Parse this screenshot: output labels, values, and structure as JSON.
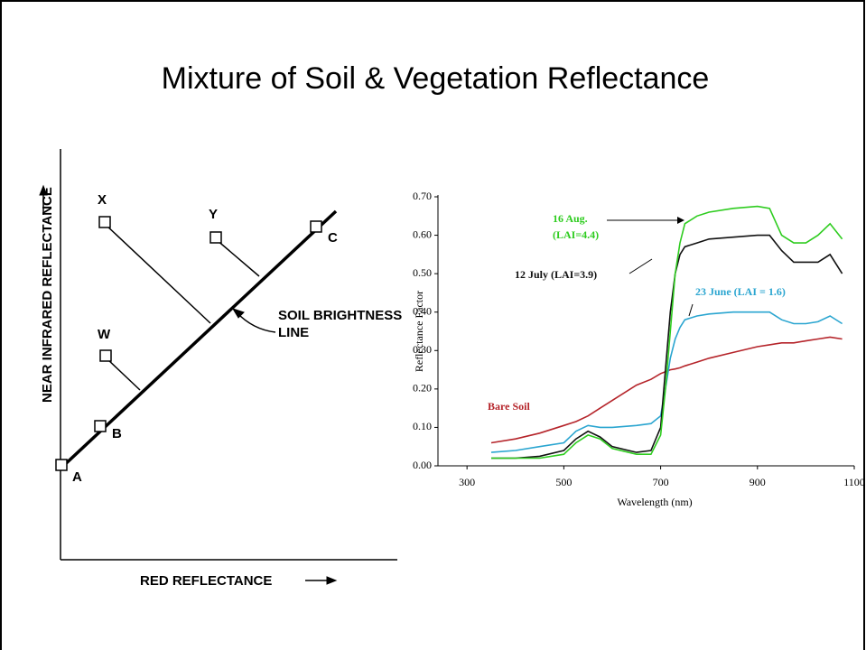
{
  "title": "Mixture of Soil & Vegetation Reflectance",
  "diagram": {
    "y_axis_label": "NEAR INFRARED REFLECTANCE",
    "x_axis_label": "RED REFLECTANCE",
    "line_label": "SOIL BRIGHTNESS LINE",
    "points": [
      "A",
      "B",
      "C",
      "X",
      "Y",
      "W"
    ]
  },
  "chart_data": {
    "type": "line",
    "x_label": "Wavelength (nm)",
    "y_label": "Reflectance Factor",
    "x": [
      350,
      400,
      450,
      500,
      525,
      550,
      575,
      600,
      650,
      680,
      700,
      710,
      720,
      730,
      740,
      750,
      775,
      800,
      850,
      900,
      925,
      950,
      975,
      1000,
      1025,
      1050,
      1075
    ],
    "series": [
      {
        "name": "Bare Soil",
        "color": "#b5242a",
        "values": [
          0.06,
          0.07,
          0.085,
          0.105,
          0.115,
          0.13,
          0.15,
          0.17,
          0.21,
          0.225,
          0.24,
          0.245,
          0.25,
          0.252,
          0.255,
          0.26,
          0.27,
          0.28,
          0.295,
          0.31,
          0.315,
          0.32,
          0.32,
          0.325,
          0.33,
          0.335,
          0.33
        ]
      },
      {
        "name": "23 June (LAI = 1.6)",
        "color": "#2aa5d0",
        "values": [
          0.035,
          0.04,
          0.05,
          0.06,
          0.09,
          0.105,
          0.1,
          0.1,
          0.105,
          0.11,
          0.13,
          0.2,
          0.28,
          0.33,
          0.36,
          0.38,
          0.39,
          0.395,
          0.4,
          0.4,
          0.4,
          0.38,
          0.37,
          0.37,
          0.375,
          0.39,
          0.37
        ]
      },
      {
        "name": "12 July (LAI=3.9)",
        "color": "#111111",
        "values": [
          0.02,
          0.02,
          0.025,
          0.04,
          0.07,
          0.09,
          0.075,
          0.05,
          0.035,
          0.04,
          0.1,
          0.25,
          0.4,
          0.5,
          0.55,
          0.57,
          0.58,
          0.59,
          0.595,
          0.6,
          0.6,
          0.56,
          0.53,
          0.53,
          0.53,
          0.55,
          0.5
        ]
      },
      {
        "name": "16 Aug. (LAI=4.4)",
        "color": "#2ecc1f",
        "values": [
          0.02,
          0.02,
          0.02,
          0.03,
          0.06,
          0.08,
          0.07,
          0.045,
          0.03,
          0.03,
          0.08,
          0.2,
          0.35,
          0.5,
          0.58,
          0.63,
          0.65,
          0.66,
          0.67,
          0.675,
          0.67,
          0.6,
          0.58,
          0.58,
          0.6,
          0.63,
          0.59
        ]
      }
    ],
    "xlim": [
      240,
      1100
    ],
    "ylim": [
      0,
      0.7
    ],
    "xticks": [
      300,
      500,
      700,
      900,
      1100
    ],
    "yticks": [
      {
        "value": 0,
        "label": "0.00"
      },
      {
        "value": 0.1,
        "label": "0.10"
      },
      {
        "value": 0.2,
        "label": "0.20"
      },
      {
        "value": 0.3,
        "label": "0.30"
      },
      {
        "value": 0.4,
        "label": "0.40"
      },
      {
        "value": 0.5,
        "label": "0.50"
      },
      {
        "value": 0.6,
        "label": "0.60"
      },
      {
        "value": 0.7,
        "label": "0.70"
      }
    ]
  }
}
